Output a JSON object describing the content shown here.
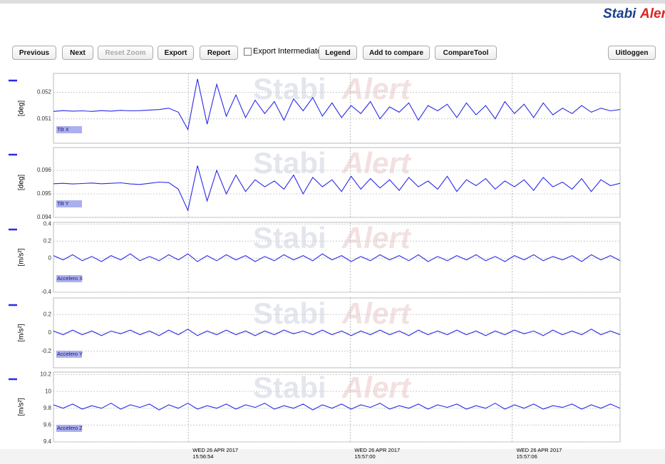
{
  "header": {
    "logo": [
      "Stabi",
      "Alert"
    ]
  },
  "toolbar": {
    "buttons": [
      "Previous",
      "Next",
      "Reset Zoom",
      "Export",
      "Report"
    ],
    "checkbox": "Export Intermediate",
    "buttons2": [
      "Legend",
      "Add to compare",
      "CompareTool"
    ],
    "logout": "Uitloggen"
  },
  "chart_data": [
    {
      "type": "line",
      "y_label": "[deg]",
      "ylim": [
        0.05008,
        0.05271
      ],
      "yticks": [
        0.051,
        0.052
      ],
      "grid": true,
      "series": [
        {
          "name": "Tilt X",
          "color": "#2a2ae8",
          "values": [
            0.05128,
            0.05131,
            0.05129,
            0.0513,
            0.05128,
            0.05131,
            0.05129,
            0.05132,
            0.0513,
            0.05131,
            0.05133,
            0.05135,
            0.0514,
            0.05125,
            0.0506,
            0.0525,
            0.0508,
            0.0523,
            0.0511,
            0.0519,
            0.05105,
            0.0517,
            0.0512,
            0.05165,
            0.05095,
            0.05175,
            0.0513,
            0.0518,
            0.0511,
            0.0516,
            0.05105,
            0.0515,
            0.0512,
            0.05165,
            0.051,
            0.05145,
            0.05125,
            0.0516,
            0.05095,
            0.0515,
            0.0513,
            0.05155,
            0.05105,
            0.0516,
            0.05115,
            0.0515,
            0.051,
            0.05165,
            0.0512,
            0.05155,
            0.05105,
            0.0516,
            0.05115,
            0.0514,
            0.0512,
            0.0515,
            0.05125,
            0.0514,
            0.0513,
            0.05135
          ]
        }
      ]
    },
    {
      "type": "line",
      "y_label": "[deg]",
      "ylim": [
        0.094,
        0.09697
      ],
      "yticks": [
        0.094,
        0.095,
        0.096
      ],
      "grid": true,
      "series": [
        {
          "name": "Tilt Y",
          "color": "#2a2ae8",
          "values": [
            0.09543,
            0.09545,
            0.09542,
            0.09544,
            0.09546,
            0.09543,
            0.09545,
            0.09547,
            0.09542,
            0.0954,
            0.09545,
            0.0955,
            0.09548,
            0.0952,
            0.0943,
            0.0962,
            0.0947,
            0.096,
            0.095,
            0.0958,
            0.0951,
            0.0956,
            0.0953,
            0.09555,
            0.0952,
            0.0958,
            0.095,
            0.0957,
            0.0953,
            0.0956,
            0.0951,
            0.09575,
            0.0952,
            0.09565,
            0.09525,
            0.0956,
            0.09515,
            0.0957,
            0.0953,
            0.09555,
            0.0952,
            0.09575,
            0.0951,
            0.0956,
            0.09535,
            0.09565,
            0.0952,
            0.09555,
            0.0953,
            0.0956,
            0.09515,
            0.0957,
            0.0953,
            0.0955,
            0.0952,
            0.09565,
            0.0951,
            0.0956,
            0.09535,
            0.09545
          ]
        }
      ]
    },
    {
      "type": "line",
      "y_label": "[m/s²]",
      "ylim": [
        -0.4,
        0.42
      ],
      "yticks": [
        -0.4,
        0,
        0.2,
        0.4
      ],
      "grid": true,
      "series": [
        {
          "name": "Accelero X",
          "color": "#2a2ae8",
          "values": [
            0.03,
            -0.02,
            0.04,
            -0.03,
            0.02,
            -0.04,
            0.03,
            -0.02,
            0.05,
            -0.03,
            0.02,
            -0.03,
            0.04,
            -0.02,
            0.05,
            -0.04,
            0.03,
            -0.03,
            0.04,
            -0.02,
            0.03,
            -0.04,
            0.02,
            -0.03,
            0.04,
            -0.02,
            0.03,
            -0.03,
            0.05,
            -0.02,
            0.03,
            -0.04,
            0.02,
            -0.03,
            0.04,
            -0.02,
            0.03,
            -0.03,
            0.04,
            -0.04,
            0.02,
            -0.03,
            0.03,
            -0.02,
            0.04,
            -0.03,
            0.02,
            -0.04,
            0.03,
            -0.02,
            0.04,
            -0.03,
            0.02,
            -0.02,
            0.03,
            -0.04,
            0.04,
            -0.02,
            0.03,
            -0.03
          ]
        }
      ]
    },
    {
      "type": "line",
      "y_label": "[m/s²]",
      "ylim": [
        -0.38,
        0.38
      ],
      "yticks": [
        -0.2,
        0,
        0.2
      ],
      "grid": true,
      "series": [
        {
          "name": "Accelero Y",
          "color": "#2a2ae8",
          "values": [
            0.02,
            -0.02,
            0.03,
            -0.02,
            0.02,
            -0.03,
            0.02,
            -0.01,
            0.03,
            -0.02,
            0.02,
            -0.03,
            0.03,
            -0.02,
            0.04,
            -0.03,
            0.02,
            -0.02,
            0.03,
            -0.02,
            0.02,
            -0.03,
            0.02,
            -0.02,
            0.03,
            -0.01,
            0.02,
            -0.02,
            0.03,
            -0.02,
            0.02,
            -0.03,
            0.02,
            -0.02,
            0.03,
            -0.02,
            0.02,
            -0.03,
            0.03,
            -0.02,
            0.02,
            -0.02,
            0.03,
            -0.02,
            0.02,
            -0.03,
            0.02,
            -0.02,
            0.03,
            -0.01,
            0.02,
            -0.03,
            0.03,
            -0.02,
            0.02,
            -0.02,
            0.04,
            -0.02,
            0.02,
            -0.02
          ]
        }
      ]
    },
    {
      "type": "line",
      "y_label": "[m/s²]",
      "ylim": [
        9.4,
        10.23
      ],
      "yticks": [
        9.4,
        9.6,
        9.8,
        10,
        10.2
      ],
      "grid": true,
      "xlim": [
        "2017-04-26T15:56:49",
        "2017-04-26T15:57:10"
      ],
      "xticks": [
        {
          "value": "2017-04-26T15:56:54",
          "label": [
            "WED 26 APR 2017",
            "15:56:54"
          ]
        },
        {
          "value": "2017-04-26T15:57:00",
          "label": [
            "WED 26 APR 2017",
            "15:57:00"
          ]
        },
        {
          "value": "2017-04-26T15:57:06",
          "label": [
            "WED 26 APR 2017",
            "15:57:06"
          ]
        }
      ],
      "series": [
        {
          "name": "Accelero Z",
          "color": "#2a2ae8",
          "values": [
            9.84,
            9.8,
            9.85,
            9.79,
            9.83,
            9.8,
            9.86,
            9.79,
            9.84,
            9.81,
            9.85,
            9.78,
            9.84,
            9.8,
            9.86,
            9.79,
            9.83,
            9.8,
            9.85,
            9.79,
            9.84,
            9.81,
            9.86,
            9.79,
            9.83,
            9.8,
            9.85,
            9.78,
            9.84,
            9.8,
            9.85,
            9.79,
            9.84,
            9.81,
            9.86,
            9.79,
            9.83,
            9.8,
            9.85,
            9.79,
            9.84,
            9.81,
            9.85,
            9.79,
            9.83,
            9.8,
            9.86,
            9.79,
            9.84,
            9.8,
            9.85,
            9.79,
            9.83,
            9.81,
            9.85,
            9.79,
            9.84,
            9.8,
            9.85,
            9.8
          ]
        }
      ]
    }
  ]
}
